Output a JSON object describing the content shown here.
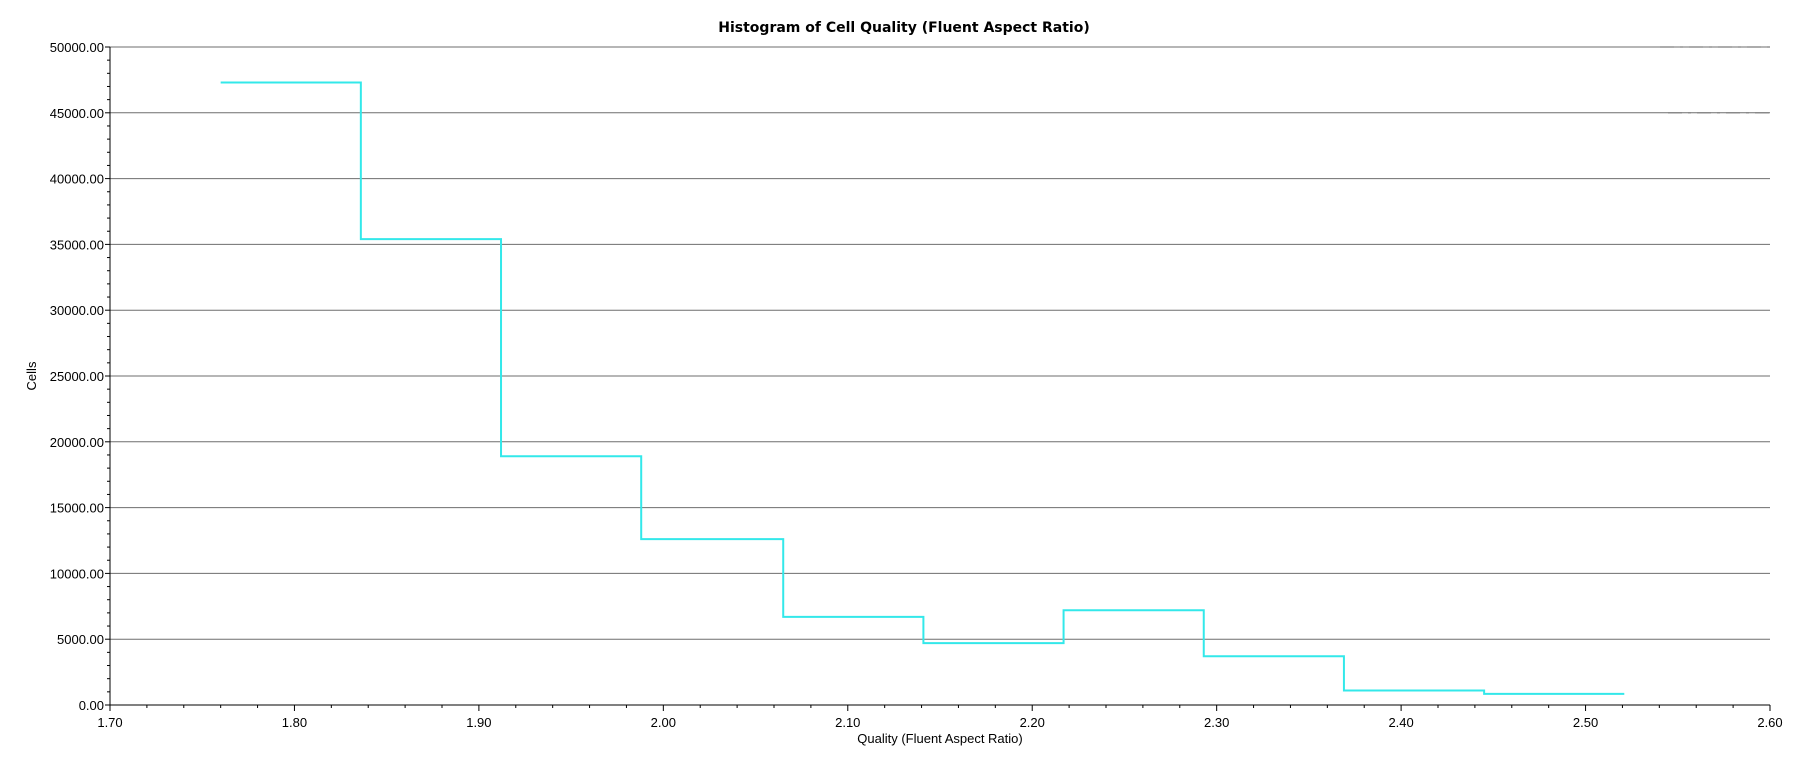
{
  "chart_data": {
    "type": "line",
    "subtype": "step-histogram",
    "title": "Histogram of Cell Quality (Fluent Aspect Ratio)",
    "xlabel": "Quality (Fluent Aspect Ratio)",
    "ylabel": "Cells",
    "xlim": [
      1.7,
      2.6
    ],
    "ylim": [
      0,
      50000
    ],
    "x_ticks": [
      "1.70",
      "1.80",
      "1.90",
      "2.00",
      "2.10",
      "2.20",
      "2.30",
      "2.40",
      "2.50",
      "2.60"
    ],
    "y_ticks": [
      "0.00",
      "5000.00",
      "10000.00",
      "15000.00",
      "20000.00",
      "25000.00",
      "30000.00",
      "35000.00",
      "40000.00",
      "45000.00",
      "50000.00"
    ],
    "grid": "horizontal",
    "line_color": "#33e8ea",
    "bins": [
      {
        "x0": 1.76,
        "x1": 1.836,
        "value": 47300
      },
      {
        "x0": 1.836,
        "x1": 1.912,
        "value": 35400
      },
      {
        "x0": 1.912,
        "x1": 1.988,
        "value": 18900
      },
      {
        "x0": 1.988,
        "x1": 2.065,
        "value": 12600
      },
      {
        "x0": 2.065,
        "x1": 2.141,
        "value": 6700
      },
      {
        "x0": 2.141,
        "x1": 2.217,
        "value": 4700
      },
      {
        "x0": 2.217,
        "x1": 2.293,
        "value": 7200
      },
      {
        "x0": 2.293,
        "x1": 2.369,
        "value": 3700
      },
      {
        "x0": 2.369,
        "x1": 2.445,
        "value": 1100
      },
      {
        "x0": 2.445,
        "x1": 2.521,
        "value": 850
      }
    ]
  }
}
